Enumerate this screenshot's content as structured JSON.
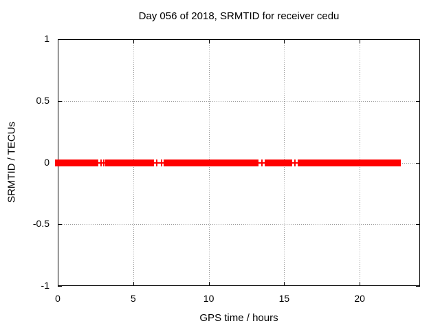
{
  "chart_data": {
    "type": "line",
    "title": "Day 056 of 2018, SRMTID for receiver cedu",
    "xlabel": "GPS time / hours",
    "ylabel": "SRMTID / TECUs",
    "xlim": [
      0,
      24
    ],
    "ylim": [
      -1,
      1
    ],
    "x_ticks": [
      0,
      5,
      10,
      15,
      20
    ],
    "x_tick_labels": [
      "0",
      "5",
      "10",
      "15",
      "20"
    ],
    "y_ticks": [
      1,
      0.5,
      0,
      -0.5,
      -1
    ],
    "y_tick_labels": [
      "1",
      "0.5",
      "0",
      "-0.5",
      "-1"
    ],
    "grid": "dotted, at all major ticks",
    "legend": "none",
    "colors": {
      "series": "#ff0000",
      "grid": "#999999",
      "axis": "#000000",
      "background": "#ffffff"
    },
    "series": [
      {
        "name": "SRMTID",
        "color": "#ff0000",
        "marker": "plus",
        "y_value": 0,
        "segments_hours": [
          [
            0,
            2.69
          ],
          [
            3.14,
            6.38
          ],
          [
            7.01,
            13.3
          ],
          [
            13.71,
            15.53
          ],
          [
            15.89,
            22.72
          ]
        ],
        "isolated_points_hours": [
          2.87,
          3.05,
          6.56,
          6.88,
          13.52,
          15.71
        ]
      }
    ]
  }
}
